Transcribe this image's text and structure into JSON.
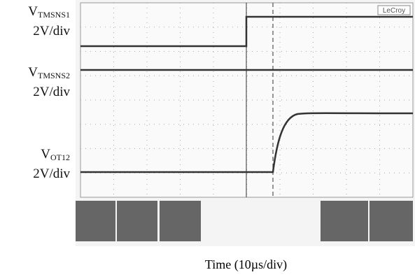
{
  "channels": [
    {
      "symbol": "V",
      "subscript": "TMSNS1",
      "scale": "2V/div"
    },
    {
      "symbol": "V",
      "subscript": "TMSNS2",
      "scale": "2V/div"
    },
    {
      "symbol": "V",
      "subscript": "OT12",
      "scale": "2V/div"
    }
  ],
  "logo": "LeCroy",
  "time_label": "Time (10µs/div)"
}
